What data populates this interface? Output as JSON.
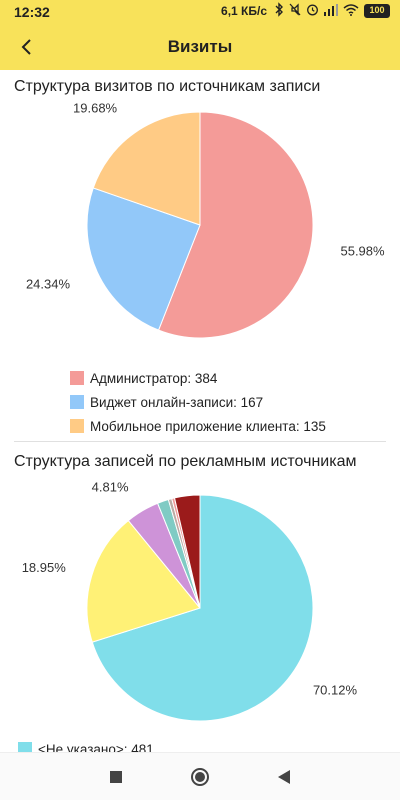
{
  "status_bar": {
    "time": "12:32",
    "speed": "6,1 КБ/с",
    "battery": "100"
  },
  "app_bar": {
    "title": "Визиты"
  },
  "colors": {
    "accent": "#f8e25a"
  },
  "sections": [
    {
      "title": "Структура визитов по источникам записи",
      "chart_data": {
        "type": "pie",
        "title": "Структура визитов по источникам записи",
        "slices": [
          {
            "label": "Администратор",
            "value": 384,
            "percent_label": "55.98%",
            "color": "#f49b98"
          },
          {
            "label": "Виджет онлайн-записи",
            "value": 167,
            "percent_label": "24.34%",
            "color": "#92c8f9"
          },
          {
            "label": "Мобильное приложение клиента",
            "value": 135,
            "percent_label": "19.68%",
            "color": "#ffcb85"
          }
        ]
      },
      "legend": [
        {
          "text": "Администратор: 384",
          "color": "#f49b98"
        },
        {
          "text": "Виджет онлайн-записи: 167",
          "color": "#92c8f9"
        },
        {
          "text": "Мобильное приложение клиента: 135",
          "color": "#ffcb85"
        }
      ]
    },
    {
      "title": "Структура записей по рекламным источникам",
      "chart_data": {
        "type": "pie",
        "title": "Структура записей по рекламным источникам",
        "slices": [
          {
            "label": "<Не указано>",
            "value": 70.12,
            "percent_label": "70.12%",
            "color": "#80deea"
          },
          {
            "label": "",
            "value": 18.95,
            "percent_label": "18.95%",
            "color": "#fff176"
          },
          {
            "label": "",
            "value": 4.81,
            "percent_label": "4.81%",
            "color": "#ce93d8"
          },
          {
            "label": "",
            "value": 1.6,
            "percent_label": "",
            "color": "#80cbc4"
          },
          {
            "label": "",
            "value": 0.5,
            "percent_label": "",
            "color": "#bcaaa4"
          },
          {
            "label": "",
            "value": 0.4,
            "percent_label": "",
            "color": "#ef9a9a"
          },
          {
            "label": "",
            "value": 3.62,
            "percent_label": "",
            "color": "#9b1b1b"
          }
        ]
      },
      "legend": [
        {
          "text": "<Не указано>: 481",
          "color": "#80deea"
        }
      ]
    }
  ],
  "nav": {
    "recent_icon": "square-icon",
    "home_icon": "circle-icon",
    "back_icon": "triangle-left-icon"
  }
}
